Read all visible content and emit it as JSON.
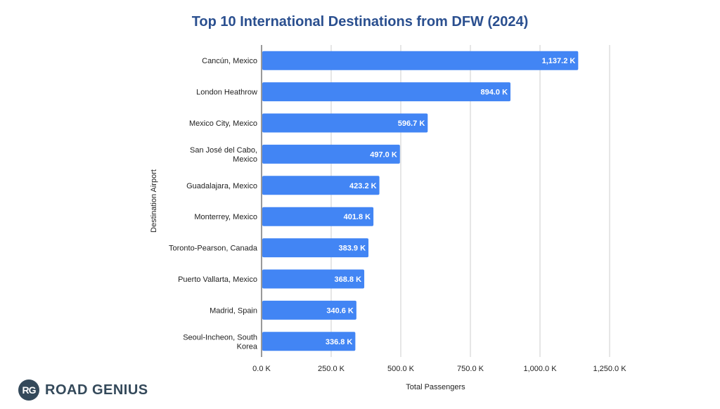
{
  "brand": {
    "badge": "RG",
    "name": "ROAD GENIUS"
  },
  "colors": {
    "bar": "#4285f4",
    "title": "#2a4f8f",
    "grid": "#cccccc",
    "brand": "#34495a"
  },
  "chart_data": {
    "type": "bar",
    "orientation": "horizontal",
    "title": "Top 10 International Destinations from DFW (2024)",
    "xlabel": "Total Passengers",
    "ylabel": "Destination Airport",
    "categories": [
      "Cancún, Mexico",
      "London Heathrow",
      "Mexico City, Mexico",
      "San José del Cabo, Mexico",
      "Guadalajara, Mexico",
      "Monterrey, Mexico",
      "Toronto-Pearson, Canada",
      "Puerto Vallarta, Mexico",
      "Madrid, Spain",
      "Seoul-Incheon, South Korea"
    ],
    "values": [
      1137.2,
      894.0,
      596.7,
      497.0,
      423.2,
      401.8,
      383.9,
      368.8,
      340.6,
      336.8
    ],
    "value_labels": [
      "1,137.2 K",
      "894.0 K",
      "596.7 K",
      "497.0 K",
      "423.2 K",
      "401.8 K",
      "383.9 K",
      "368.8 K",
      "340.6 K",
      "336.8 K"
    ],
    "xlim": [
      0,
      1250
    ],
    "xticks": [
      0,
      250,
      500,
      750,
      1000,
      1250
    ],
    "xtick_labels": [
      "0.0 K",
      "250.0 K",
      "500.0 K",
      "750.0 K",
      "1,000.0 K",
      "1,250.0 K"
    ],
    "grid": true,
    "legend": "none"
  }
}
